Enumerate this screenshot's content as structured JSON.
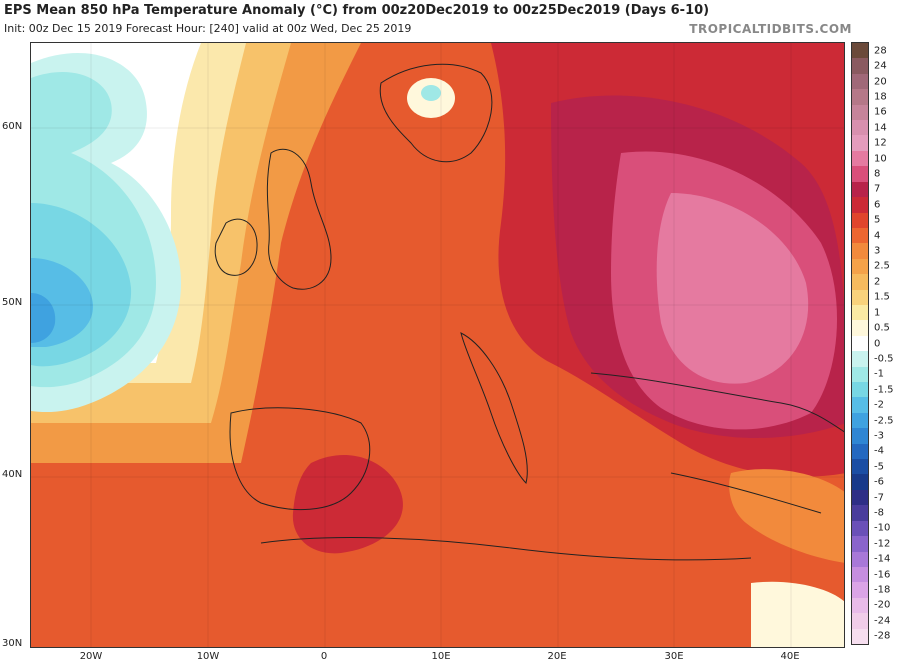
{
  "header": {
    "title": "EPS Mean 850 hPa Temperature Anomaly (°C) from 00z20Dec2019 to 00z25Dec2019 (Days 6-10)",
    "subtitle": "Init: 00z Dec 15 2019   Forecast Hour: [240]   valid at 00z Wed, Dec 25 2019",
    "brand": "TROPICALTIDBITS.COM"
  },
  "map": {
    "projection": "lat-lon",
    "lat_labels": [
      "60N",
      "50N",
      "40N",
      "30N"
    ],
    "lon_labels": [
      "20W",
      "10W",
      "0",
      "10E",
      "20E",
      "30E",
      "40E"
    ]
  },
  "colorbar": {
    "labels": [
      "28",
      "24",
      "20",
      "18",
      "16",
      "14",
      "12",
      "10",
      "8",
      "7",
      "6",
      "5",
      "4",
      "3",
      "2.5",
      "2",
      "1.5",
      "1",
      "0.5",
      "0",
      "-0.5",
      "-1",
      "-1.5",
      "-2",
      "-2.5",
      "-3",
      "-4",
      "-5",
      "-6",
      "-7",
      "-8",
      "-10",
      "-12",
      "-14",
      "-16",
      "-18",
      "-20",
      "-24",
      "-28"
    ],
    "colors": [
      "#6b4a3a",
      "#8a5a60",
      "#a06878",
      "#b57888",
      "#c6849a",
      "#d890ae",
      "#e49cbc",
      "#e57aa0",
      "#d94f7a",
      "#b8234a",
      "#cc2a36",
      "#e0452c",
      "#ec6630",
      "#f28a3c",
      "#f4a24a",
      "#f6ba5e",
      "#f8d27c",
      "#faeaa4",
      "#fff8dc",
      "#ffffff",
      "#c9f3ef",
      "#9fe8e6",
      "#78d7e4",
      "#57bde6",
      "#3fa2e0",
      "#2f86d4",
      "#2468c0",
      "#1b4ea4",
      "#183a8a",
      "#2e2e86",
      "#4a3c9c",
      "#6a50b8",
      "#8a64cc",
      "#a878d8",
      "#c68ee0",
      "#dba4e6",
      "#e8bbe8",
      "#f0cde8",
      "#f6deef"
    ]
  }
}
